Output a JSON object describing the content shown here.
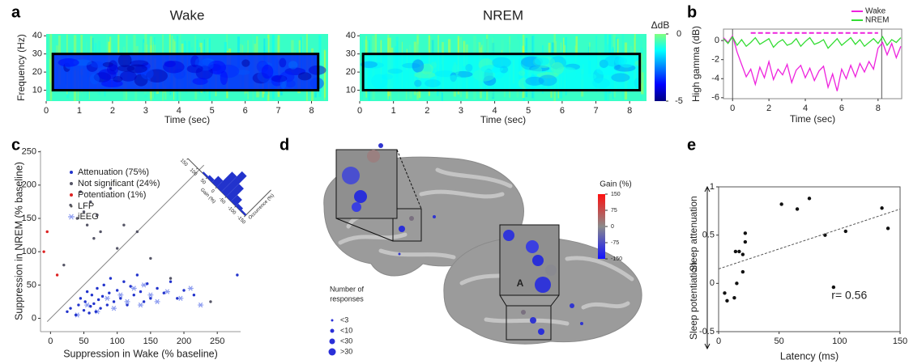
{
  "chart_data": [
    {
      "type": "heatmap",
      "panel_label": "a",
      "title": "Wake",
      "title_color": "#e040e0",
      "x_label": "Time (sec)",
      "y_label": "Frequency (Hz)",
      "xlim": [
        0,
        8.5
      ],
      "ylim": [
        4,
        41
      ],
      "xticks": [
        0,
        1,
        2,
        3,
        4,
        5,
        6,
        7,
        8
      ],
      "yticks": [
        10,
        20,
        30,
        40
      ],
      "background": -0.7,
      "box": {
        "x": [
          0.2,
          8.2
        ],
        "y": [
          10,
          30
        ],
        "value": -3.4
      }
    },
    {
      "type": "heatmap",
      "title": "NREM",
      "title_color": "#1fa048",
      "x_label": "Time (sec)",
      "xlim": [
        0,
        8.5
      ],
      "ylim": [
        4,
        41
      ],
      "xticks": [
        0,
        1,
        2,
        3,
        4,
        5,
        6,
        7,
        8
      ],
      "yticks": [
        10,
        20,
        30,
        40
      ],
      "background": -0.7,
      "box": {
        "x": [
          0.1,
          8.3
        ],
        "y": [
          10,
          30
        ],
        "value": -1.2
      },
      "colorbar": {
        "label": "ΔdB",
        "lim": [
          -5,
          0
        ],
        "ticks": [
          0,
          -5
        ]
      }
    },
    {
      "type": "line",
      "panel_label": "b",
      "x_label": "Time (sec)",
      "y_label": "High gamma (dB)",
      "xlim": [
        -0.5,
        9.3
      ],
      "ylim": [
        -6.1,
        1.2
      ],
      "xticks": [
        0,
        2,
        4,
        6,
        8
      ],
      "yticks": [
        0,
        -2,
        -4,
        -6
      ],
      "x": [
        -0.5,
        -0.25,
        0,
        0.25,
        0.5,
        0.75,
        1,
        1.25,
        1.5,
        1.75,
        2,
        2.25,
        2.5,
        2.75,
        3,
        3.25,
        3.5,
        3.75,
        4,
        4.25,
        4.5,
        4.75,
        5,
        5.25,
        5.5,
        5.75,
        6,
        6.25,
        6.5,
        6.75,
        7,
        7.25,
        7.5,
        7.75,
        8,
        8.25,
        8.5,
        8.75,
        9,
        9.25
      ],
      "series": [
        {
          "name": "Wake",
          "color": "#ee22dd",
          "values": [
            0.3,
            -0.2,
            0.5,
            -1.2,
            -2.5,
            -3.8,
            -3.0,
            -4.6,
            -2.8,
            -3.9,
            -2.2,
            -4.1,
            -3.0,
            -3.6,
            -2.5,
            -4.4,
            -3.1,
            -2.6,
            -3.9,
            -2.9,
            -4.2,
            -3.2,
            -2.7,
            -4.9,
            -3.5,
            -5.3,
            -3.0,
            -4.0,
            -2.6,
            -3.8,
            -2.4,
            -3.3,
            -2.2,
            -3.0,
            -0.8,
            -0.2,
            -1.5,
            -0.3,
            -1.8,
            -0.6
          ]
        },
        {
          "name": "NREM",
          "color": "#33dd33",
          "values": [
            0.2,
            -0.3,
            0.4,
            -0.5,
            0.1,
            -0.6,
            -0.2,
            0.3,
            -0.4,
            -0.1,
            0.2,
            -0.7,
            -0.2,
            0.1,
            -0.5,
            -0.3,
            0.2,
            -0.6,
            -0.1,
            0.3,
            -0.4,
            -0.2,
            0.1,
            -0.8,
            -0.3,
            0.2,
            -0.5,
            -0.1,
            0.3,
            -0.4,
            0.1,
            -0.6,
            -0.2,
            0.2,
            -0.3,
            0.4,
            -0.5,
            0.1,
            -0.2,
            0.3
          ]
        }
      ],
      "events": [
        0,
        8.2
      ],
      "significance": {
        "x": [
          1,
          8
        ],
        "y": 0.8,
        "color": "#ee22dd"
      },
      "legend": "upper right"
    },
    {
      "type": "scatter",
      "panel_label": "c",
      "x_label": "Suppression in Wake (% baseline)",
      "y_label": "Suppression in NREM (% baseline)",
      "xlim": [
        -15,
        285
      ],
      "ylim": [
        -20,
        252
      ],
      "xticks": [
        0,
        50,
        100,
        150,
        200,
        250
      ],
      "yticks": [
        0,
        50,
        100,
        150,
        200,
        250
      ],
      "reference_line": {
        "x": [
          -5,
          230
        ],
        "y": [
          -5,
          230
        ]
      },
      "series": [
        {
          "name": "Attenuation (75%)",
          "color": "#2233cc",
          "x": [
            25,
            30,
            38,
            42,
            45,
            50,
            52,
            55,
            58,
            60,
            62,
            65,
            68,
            70,
            72,
            75,
            78,
            80,
            85,
            88,
            90,
            95,
            100,
            105,
            110,
            115,
            120,
            125,
            130,
            135,
            140,
            145,
            150,
            160,
            170,
            180,
            190,
            200,
            215,
            280
          ],
          "values": [
            10,
            15,
            5,
            20,
            30,
            12,
            25,
            40,
            8,
            18,
            35,
            22,
            10,
            45,
            28,
            15,
            33,
            50,
            20,
            38,
            60,
            25,
            42,
            30,
            55,
            20,
            48,
            35,
            65,
            40,
            25,
            52,
            30,
            45,
            38,
            55,
            30,
            42,
            35,
            65
          ]
        },
        {
          "name": "Not significant (24%)",
          "color": "#555566",
          "x": [
            30,
            40,
            45,
            50,
            55,
            60,
            65,
            70,
            75,
            90,
            100,
            110,
            130,
            20,
            150,
            180,
            240
          ],
          "values": [
            170,
            150,
            190,
            160,
            140,
            175,
            120,
            155,
            130,
            195,
            105,
            140,
            130,
            80,
            90,
            60,
            25
          ]
        },
        {
          "name": "Potentiation (1%)",
          "color": "#dd2222",
          "x": [
            -5,
            -10,
            10
          ],
          "values": [
            130,
            100,
            65
          ]
        }
      ],
      "marker_legend": [
        {
          "name": "LFP"
        },
        {
          "name": "iEEG",
          "color": "#8c9cf0",
          "x": [
            40,
            55,
            70,
            85,
            95,
            105,
            115,
            125,
            135,
            140,
            150,
            160,
            175,
            195,
            210,
            225
          ],
          "values": [
            5,
            20,
            10,
            30,
            15,
            35,
            25,
            45,
            20,
            50,
            35,
            25,
            40,
            30,
            45,
            20
          ]
        }
      ],
      "inset": {
        "y_label": "Gain (%)",
        "x_label": "Occurrence (%)",
        "ylim": [
          -150,
          150
        ],
        "yticks": [
          150,
          100,
          50,
          0,
          -50,
          -100,
          -150
        ],
        "xlim": [
          0,
          20
        ],
        "bins": [
          -150,
          -125,
          -100,
          -75,
          -50,
          -25,
          0,
          25,
          50,
          75,
          100,
          125,
          150
        ],
        "counts": [
          1,
          2,
          5,
          10,
          16,
          12,
          5,
          2,
          1,
          0,
          0,
          0
        ],
        "color": "#2233cc"
      }
    },
    {
      "type": "image",
      "panel_label": "d",
      "colorbar": {
        "label": "Gain (%)",
        "lim": [
          -150,
          150
        ],
        "ticks": [
          150,
          75,
          0,
          -75,
          -150
        ]
      },
      "size_legend": {
        "title_lines": [
          "Number of",
          "responses"
        ],
        "labels": [
          "<3",
          "<10",
          "<30",
          ">30"
        ]
      },
      "annotation": "A"
    },
    {
      "type": "scatter",
      "panel_label": "e",
      "x_label": "Latency (ms)",
      "y_labels": [
        "Sleep attenuation",
        "Sleep potentiation"
      ],
      "annotation": "r= 0.56",
      "xlim": [
        0,
        150
      ],
      "ylim": [
        -0.5,
        1
      ],
      "xticks": [
        0,
        50,
        100,
        150
      ],
      "yticks": [
        1,
        0.5,
        0,
        -0.5
      ],
      "frame": true,
      "color": "#111111",
      "x": [
        5,
        7,
        13,
        15,
        14,
        17,
        20,
        20,
        22,
        22,
        52,
        65,
        75,
        88,
        95,
        105,
        135,
        140
      ],
      "values": [
        -0.1,
        -0.18,
        -0.15,
        0,
        0.33,
        0.33,
        0.3,
        0.12,
        0.43,
        0.52,
        0.82,
        0.77,
        0.88,
        0.5,
        -0.04,
        0.54,
        0.78,
        0.57
      ],
      "trend": {
        "x": [
          0,
          150
        ],
        "y": [
          0.15,
          0.77
        ]
      }
    }
  ]
}
